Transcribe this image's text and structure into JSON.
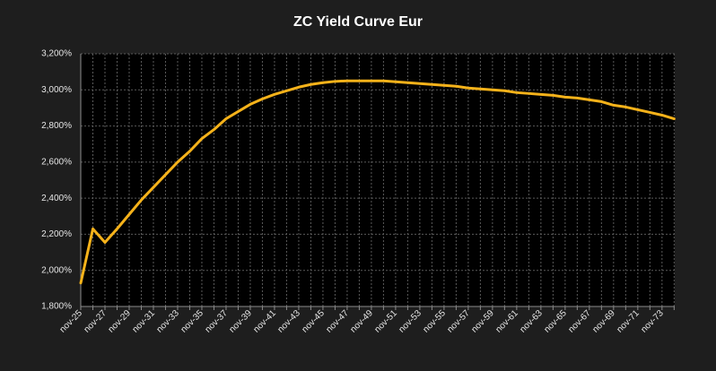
{
  "chart_data": {
    "type": "line",
    "title": "ZC Yield Curve Eur",
    "categories": [
      "nov-25",
      null,
      "nov-27",
      null,
      "nov-29",
      null,
      "nov-31",
      null,
      "nov-33",
      null,
      "nov-35",
      null,
      "nov-37",
      null,
      "nov-39",
      null,
      "nov-41",
      null,
      "nov-43",
      null,
      "nov-45",
      null,
      "nov-47",
      null,
      "nov-49",
      null,
      "nov-51",
      null,
      "nov-53",
      null,
      "nov-55",
      null,
      "nov-57",
      null,
      "nov-59",
      null,
      "nov-61",
      null,
      "nov-63",
      null,
      "nov-65",
      null,
      "nov-67",
      null,
      "nov-69",
      null,
      "nov-71",
      null,
      "nov-73",
      null
    ],
    "values": [
      1.93,
      2.23,
      2.155,
      2.23,
      2.31,
      2.39,
      2.46,
      2.53,
      2.6,
      2.66,
      2.73,
      2.78,
      2.84,
      2.88,
      2.92,
      2.95,
      2.975,
      2.995,
      3.015,
      3.03,
      3.04,
      3.047,
      3.05,
      3.05,
      3.05,
      3.05,
      3.045,
      3.04,
      3.035,
      3.03,
      3.025,
      3.02,
      3.01,
      3.005,
      3.0,
      2.995,
      2.985,
      2.98,
      2.975,
      2.97,
      2.96,
      2.955,
      2.945,
      2.935,
      2.915,
      2.905,
      2.89,
      2.875,
      2.86,
      2.84
    ],
    "color": "#f5b21a",
    "ylim": [
      1.8,
      3.2
    ],
    "yticks": [
      {
        "value": 1.8,
        "label": "1,800%"
      },
      {
        "value": 2.0,
        "label": "2,000%"
      },
      {
        "value": 2.2,
        "label": "2,200%"
      },
      {
        "value": 2.4,
        "label": "2,400%"
      },
      {
        "value": 2.6,
        "label": "2,600%"
      },
      {
        "value": 2.8,
        "label": "2,800%"
      },
      {
        "value": 3.0,
        "label": "3,000%"
      },
      {
        "value": 3.2,
        "label": "3,200%"
      }
    ],
    "grid": true
  }
}
